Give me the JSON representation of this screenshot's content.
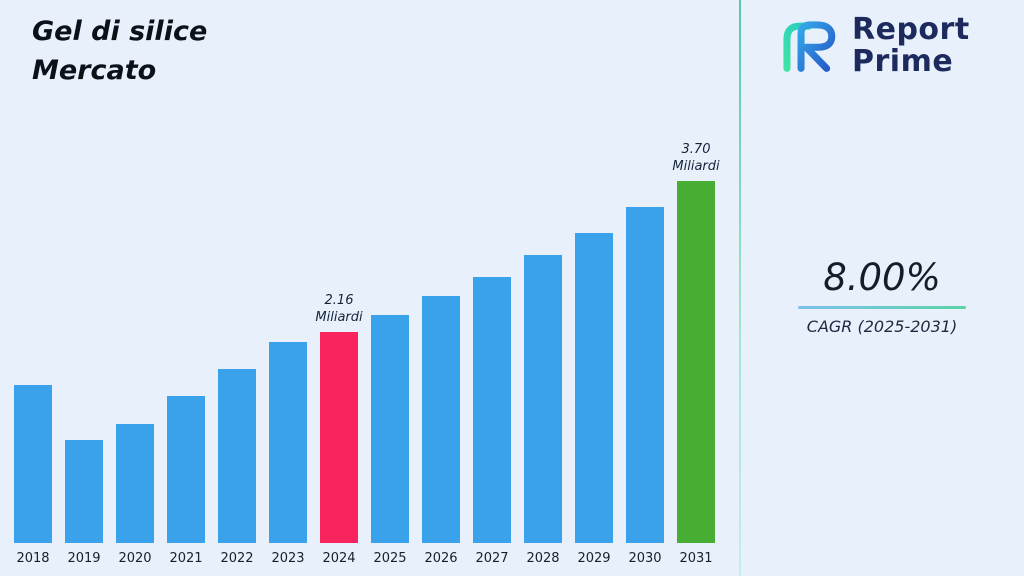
{
  "title": {
    "line1": "Gel di silice",
    "line2": "Mercato"
  },
  "brand": {
    "line1": "Report",
    "line2": "Prime"
  },
  "cagr": {
    "value": "8.00%",
    "label": "CAGR (2025-2031)"
  },
  "chart_data": {
    "type": "bar",
    "title": "Gel di silice Mercato",
    "unit": "Miliardi",
    "categories": [
      "2018",
      "2019",
      "2020",
      "2021",
      "2022",
      "2023",
      "2024",
      "2025",
      "2026",
      "2027",
      "2028",
      "2029",
      "2030",
      "2031"
    ],
    "values": [
      1.62,
      1.05,
      1.22,
      1.5,
      1.78,
      2.05,
      2.16,
      2.33,
      2.52,
      2.72,
      2.94,
      3.17,
      3.43,
      3.7
    ],
    "ylim": [
      0,
      3.7
    ],
    "grid": false,
    "legend": false,
    "bar_color": "#3AA2EA",
    "highlight_colors": {
      "2024": "#F9245E",
      "2031": "#47AE33"
    },
    "annotations": [
      {
        "category": "2024",
        "lines": [
          "2.16",
          "Miliardi"
        ]
      },
      {
        "category": "2031",
        "lines": [
          "3.70",
          "Miliardi"
        ]
      }
    ]
  }
}
